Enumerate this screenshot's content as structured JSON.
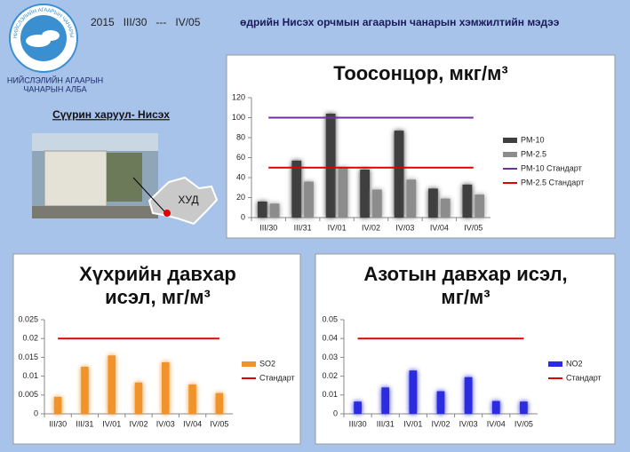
{
  "header": {
    "logo_text": "НИЙСЛЭЛИЙН АГААРЫН ЧАНАРЫН АЛБА",
    "period": "2015   III/30   ---   IV/05",
    "headline": "өдрийн Нисэх орчмын агаарын чанарын хэмжилтийн мэдээ",
    "org": [
      "НИЙСЛЭЛИЙН АГААРЫН",
      "ЧАНАРЫН АЛБА"
    ],
    "station": "Сүүрин харуул- Нисэх",
    "map_label": "ХУД"
  },
  "chart_data": [
    {
      "type": "bar",
      "title": "Тоосонцор, мкг/м³",
      "categories": [
        "III/30",
        "III/31",
        "IV/01",
        "IV/02",
        "IV/03",
        "IV/04",
        "IV/05"
      ],
      "series": [
        {
          "name": "PM-10",
          "type": "bar",
          "color": "#3f3f3f",
          "values": [
            16,
            57,
            104,
            48,
            87,
            29,
            33
          ]
        },
        {
          "name": "PM-2.5",
          "type": "bar",
          "color": "#8c8c8c",
          "values": [
            14,
            36,
            50,
            28,
            38,
            19,
            23
          ]
        },
        {
          "name": "PM-10 Стандарт",
          "type": "line",
          "color": "#7030a0",
          "values": [
            100,
            100,
            100,
            100,
            100,
            100,
            100
          ]
        },
        {
          "name": "PM-2.5 Стандарт",
          "type": "line",
          "color": "#e00000",
          "values": [
            50,
            50,
            50,
            50,
            50,
            50,
            50
          ]
        }
      ],
      "ylim": [
        0,
        120
      ],
      "yticks": [
        0,
        20,
        40,
        60,
        80,
        100,
        120
      ]
    },
    {
      "type": "bar",
      "title": "Хүхрийн давхар исэл, мг/м³",
      "categories": [
        "III/30",
        "III/31",
        "IV/01",
        "IV/02",
        "IV/03",
        "IV/04",
        "IV/05"
      ],
      "series": [
        {
          "name": "SO2",
          "type": "bar",
          "color": "#f0932b",
          "values": [
            0.0045,
            0.0125,
            0.0155,
            0.0083,
            0.0137,
            0.0078,
            0.0055
          ]
        },
        {
          "name": "Стандарт",
          "type": "line",
          "color": "#e00000",
          "values": [
            0.02,
            0.02,
            0.02,
            0.02,
            0.02,
            0.02,
            0.02
          ]
        }
      ],
      "ylim": [
        0,
        0.025
      ],
      "yticks": [
        0,
        0.005,
        0.01,
        0.015,
        0.02,
        0.025
      ]
    },
    {
      "type": "bar",
      "title": "Азотын давхар исэл, мг/м³",
      "categories": [
        "III/30",
        "III/31",
        "IV/01",
        "IV/02",
        "IV/03",
        "IV/04",
        "IV/05"
      ],
      "series": [
        {
          "name": "NO2",
          "type": "bar",
          "color": "#2b2be0",
          "values": [
            0.0065,
            0.014,
            0.023,
            0.012,
            0.0195,
            0.0068,
            0.0065
          ]
        },
        {
          "name": "Стандарт",
          "type": "line",
          "color": "#e00000",
          "values": [
            0.04,
            0.04,
            0.04,
            0.04,
            0.04,
            0.04,
            0.04
          ]
        }
      ],
      "ylim": [
        0,
        0.05
      ],
      "yticks": [
        0,
        0.01,
        0.02,
        0.03,
        0.04,
        0.05
      ]
    }
  ]
}
